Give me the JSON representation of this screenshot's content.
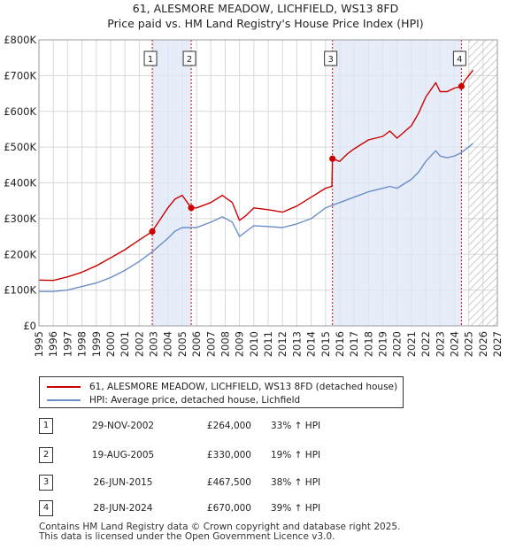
{
  "chart_data": {
    "type": "line",
    "title": "61, ALESMORE MEADOW, LICHFIELD, WS13 8FD",
    "subtitle": "Price paid vs. HM Land Registry's House Price Index (HPI)",
    "xlim": [
      1995,
      2027
    ],
    "ylim": [
      0,
      800000
    ],
    "x_ticks": [
      1995,
      1996,
      1997,
      1998,
      1999,
      2000,
      2001,
      2002,
      2003,
      2004,
      2005,
      2006,
      2007,
      2008,
      2009,
      2010,
      2011,
      2012,
      2013,
      2014,
      2015,
      2016,
      2017,
      2018,
      2019,
      2020,
      2021,
      2022,
      2023,
      2024,
      2025,
      2026,
      2027
    ],
    "y_ticks": [
      {
        "value": 0,
        "label": "£0"
      },
      {
        "value": 100000,
        "label": "£100K"
      },
      {
        "value": 200000,
        "label": "£200K"
      },
      {
        "value": 300000,
        "label": "£300K"
      },
      {
        "value": 400000,
        "label": "£400K"
      },
      {
        "value": 500000,
        "label": "£500K"
      },
      {
        "value": 600000,
        "label": "£600K"
      },
      {
        "value": 700000,
        "label": "£700K"
      },
      {
        "value": 800000,
        "label": "£800K"
      }
    ],
    "future_hatch_start": 2025.0,
    "shaded_spans": [
      [
        2002.91,
        2005.63
      ],
      [
        2015.49,
        2024.49
      ]
    ],
    "series": [
      {
        "name": "61, ALESMORE MEADOW, LICHFIELD, WS13 8FD (detached house)",
        "color": "#cc0000",
        "x": [
          1995.0,
          1996.0,
          1997.0,
          1998.0,
          1999.0,
          2000.0,
          2001.0,
          2002.0,
          2002.91,
          2003.5,
          2004.0,
          2004.5,
          2005.0,
          2005.63,
          2006.0,
          2007.0,
          2007.8,
          2008.5,
          2009.0,
          2009.5,
          2010.0,
          2011.0,
          2012.0,
          2013.0,
          2014.0,
          2015.0,
          2015.45,
          2015.49,
          2016.0,
          2016.5,
          2017.0,
          2018.0,
          2019.0,
          2019.5,
          2020.0,
          2021.0,
          2021.5,
          2022.0,
          2022.7,
          2023.0,
          2023.5,
          2024.0,
          2024.49,
          2024.8,
          2025.3
        ],
        "values": [
          128000,
          127000,
          137000,
          150000,
          168000,
          190000,
          213000,
          240000,
          264000,
          300000,
          330000,
          355000,
          365000,
          330000,
          330000,
          345000,
          365000,
          345000,
          295000,
          310000,
          330000,
          325000,
          318000,
          335000,
          360000,
          385000,
          390000,
          467500,
          460000,
          480000,
          495000,
          520000,
          530000,
          545000,
          525000,
          560000,
          595000,
          640000,
          680000,
          655000,
          655000,
          665000,
          670000,
          690000,
          715000
        ]
      },
      {
        "name": "HPI: Average price, detached house, Lichfield",
        "color": "#6a8fc7",
        "x": [
          1995.0,
          1996.0,
          1997.0,
          1998.0,
          1999.0,
          2000.0,
          2001.0,
          2002.0,
          2003.0,
          2004.0,
          2004.5,
          2005.0,
          2006.0,
          2007.0,
          2007.8,
          2008.5,
          2009.0,
          2009.5,
          2010.0,
          2011.0,
          2012.0,
          2013.0,
          2014.0,
          2015.0,
          2016.0,
          2017.0,
          2018.0,
          2019.0,
          2019.5,
          2020.0,
          2021.0,
          2021.5,
          2022.0,
          2022.7,
          2023.0,
          2023.5,
          2024.0,
          2024.5,
          2025.3
        ],
        "values": [
          96000,
          96000,
          100000,
          110000,
          120000,
          135000,
          155000,
          180000,
          210000,
          245000,
          265000,
          275000,
          275000,
          290000,
          305000,
          290000,
          250000,
          265000,
          280000,
          278000,
          275000,
          285000,
          300000,
          330000,
          345000,
          360000,
          375000,
          385000,
          390000,
          385000,
          410000,
          430000,
          460000,
          490000,
          475000,
          470000,
          475000,
          485000,
          510000
        ]
      }
    ],
    "sale_markers": [
      {
        "label": "1",
        "x": 2002.91,
        "value": 264000
      },
      {
        "label": "2",
        "x": 2005.63,
        "value": 330000
      },
      {
        "label": "3",
        "x": 2015.49,
        "value": 467500
      },
      {
        "label": "4",
        "x": 2024.49,
        "value": 670000
      }
    ]
  },
  "legend": {
    "property_label": "61, ALESMORE MEADOW, LICHFIELD, WS13 8FD (detached house)",
    "property_color": "#cc0000",
    "hpi_label": "HPI: Average price, detached house, Lichfield",
    "hpi_color": "#6a8fc7"
  },
  "sales_table": [
    {
      "num": "1",
      "date": "29-NOV-2002",
      "price": "£264,000",
      "hpi": "33% ↑ HPI"
    },
    {
      "num": "2",
      "date": "19-AUG-2005",
      "price": "£330,000",
      "hpi": "19% ↑ HPI"
    },
    {
      "num": "3",
      "date": "26-JUN-2015",
      "price": "£467,500",
      "hpi": "38% ↑ HPI"
    },
    {
      "num": "4",
      "date": "28-JUN-2024",
      "price": "£670,000",
      "hpi": "39% ↑ HPI"
    }
  ],
  "footer": {
    "line1": "Contains HM Land Registry data © Crown copyright and database right 2025.",
    "line2": "This data is licensed under the Open Government Licence v3.0."
  }
}
